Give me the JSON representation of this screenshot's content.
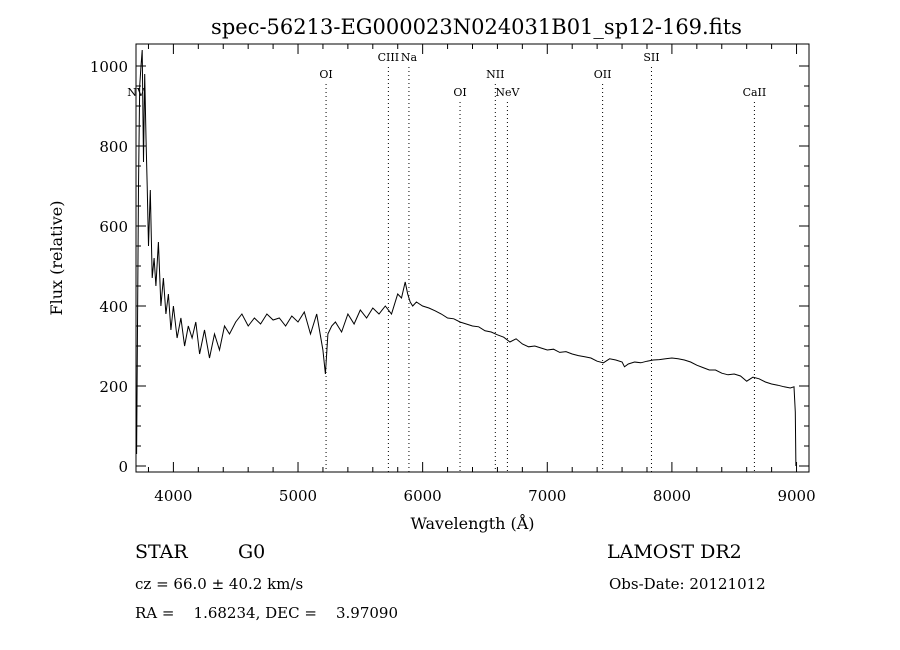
{
  "chart_data": {
    "type": "line",
    "title": "spec-56213-EG000023N024031B01_sp12-169.fits",
    "xlabel": "Wavelength (Å)",
    "ylabel": "Flux (relative)",
    "xlim": [
      3700,
      9100
    ],
    "ylim": [
      -15,
      1055
    ],
    "xticks": [
      4000,
      5000,
      6000,
      7000,
      8000,
      9000
    ],
    "xtick_labels": [
      "4000",
      "5000",
      "6000",
      "7000",
      "8000",
      "9000"
    ],
    "yticks": [
      0,
      200,
      400,
      600,
      800,
      1000
    ],
    "ytick_labels": [
      "0",
      "200",
      "400",
      "600",
      "800",
      "1000"
    ],
    "grid": false,
    "line_color": "#000000",
    "lines": [
      {
        "name": "NV",
        "x": 3700,
        "row": "middle"
      },
      {
        "name": "OI",
        "x": 5225,
        "row": "upper"
      },
      {
        "name": "CIII",
        "x": 5725,
        "row": "top"
      },
      {
        "name": "Na",
        "x": 5890,
        "row": "top"
      },
      {
        "name": "OI",
        "x": 6300,
        "row": "middle"
      },
      {
        "name": "NII",
        "x": 6583,
        "row": "upper"
      },
      {
        "name": "NeV",
        "x": 6680,
        "row": "middle"
      },
      {
        "name": "OII",
        "x": 7444,
        "row": "upper"
      },
      {
        "name": "SII",
        "x": 7836,
        "row": "top"
      },
      {
        "name": "CaII",
        "x": 8662,
        "row": "middle"
      }
    ],
    "x": [
      3705,
      3720,
      3730,
      3740,
      3750,
      3760,
      3770,
      3780,
      3790,
      3800,
      3815,
      3830,
      3845,
      3860,
      3880,
      3900,
      3920,
      3940,
      3960,
      3980,
      4000,
      4030,
      4060,
      4090,
      4120,
      4150,
      4180,
      4210,
      4250,
      4290,
      4330,
      4370,
      4410,
      4450,
      4500,
      4550,
      4600,
      4650,
      4700,
      4750,
      4800,
      4850,
      4900,
      4950,
      5000,
      5050,
      5100,
      5150,
      5200,
      5220,
      5240,
      5270,
      5300,
      5350,
      5400,
      5450,
      5500,
      5550,
      5600,
      5650,
      5700,
      5750,
      5800,
      5830,
      5860,
      5880,
      5900,
      5920,
      5950,
      6000,
      6050,
      6100,
      6150,
      6200,
      6250,
      6300,
      6350,
      6400,
      6450,
      6500,
      6550,
      6600,
      6650,
      6700,
      6750,
      6800,
      6850,
      6900,
      6950,
      7000,
      7050,
      7100,
      7150,
      7200,
      7250,
      7300,
      7350,
      7400,
      7450,
      7500,
      7550,
      7600,
      7620,
      7650,
      7700,
      7750,
      7800,
      7850,
      7900,
      7950,
      8000,
      8050,
      8100,
      8150,
      8200,
      8250,
      8300,
      8350,
      8400,
      8450,
      8500,
      8550,
      8600,
      8650,
      8700,
      8750,
      8800,
      8850,
      8900,
      8950,
      8980,
      8990,
      8995
    ],
    "y": [
      30,
      700,
      950,
      1000,
      1040,
      760,
      980,
      820,
      700,
      550,
      690,
      470,
      520,
      450,
      560,
      400,
      470,
      380,
      430,
      340,
      400,
      320,
      370,
      300,
      350,
      320,
      360,
      280,
      340,
      270,
      330,
      290,
      350,
      330,
      360,
      380,
      350,
      370,
      355,
      380,
      365,
      370,
      350,
      375,
      360,
      385,
      330,
      380,
      290,
      230,
      330,
      350,
      360,
      335,
      380,
      355,
      390,
      370,
      395,
      380,
      400,
      380,
      430,
      420,
      460,
      430,
      410,
      400,
      410,
      400,
      395,
      388,
      380,
      370,
      368,
      360,
      355,
      350,
      348,
      338,
      335,
      328,
      322,
      310,
      318,
      305,
      298,
      300,
      295,
      290,
      292,
      284,
      286,
      280,
      276,
      273,
      270,
      262,
      258,
      268,
      265,
      260,
      248,
      255,
      260,
      258,
      262,
      265,
      266,
      268,
      270,
      268,
      265,
      260,
      252,
      246,
      240,
      240,
      232,
      228,
      230,
      225,
      212,
      222,
      218,
      210,
      205,
      202,
      198,
      195,
      198,
      135,
      0
    ]
  },
  "info": {
    "class_label": "STAR",
    "subclass": "G0",
    "survey": "LAMOST DR2",
    "cz_text": "cz = 66.0 ± 40.2 km/s",
    "obs_date_text": "Obs-Date: 20121012",
    "radec_text": "RA =    1.68234, DEC =    3.97090"
  }
}
